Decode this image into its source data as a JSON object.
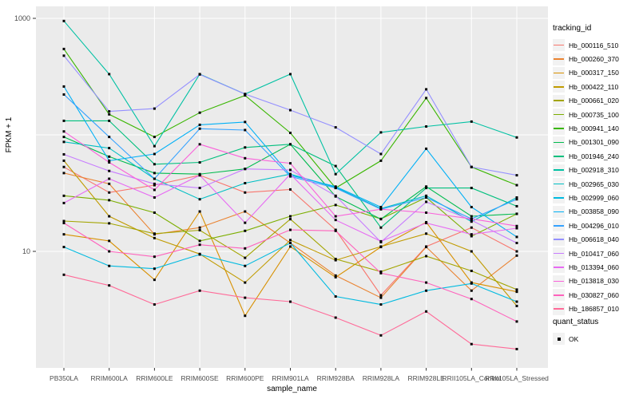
{
  "y_axis": {
    "label": "FPKM + 1",
    "ticks": [
      {
        "label": "1000",
        "value": 1000
      },
      {
        "label": "10",
        "value": 10
      }
    ]
  },
  "x_axis": {
    "label": "sample_name"
  },
  "legend": {
    "tracking_title": "tracking_id",
    "quant_title": "quant_status",
    "quant_items": [
      {
        "label": "OK",
        "marker": "black-square"
      }
    ]
  },
  "style": {
    "panel_bg": "#EBEBEB",
    "grid_color": "#FFFFFF",
    "tick_text_color": "#4d4d4d",
    "axis_title_color": "#000000",
    "point_color": "#000000"
  },
  "chart_data": {
    "type": "line",
    "title": "",
    "xlabel": "sample_name",
    "ylabel": "FPKM + 1",
    "y_scale": "log10",
    "ylim": [
      0.7,
      1300
    ],
    "y_gridlines": [
      10,
      100,
      1000
    ],
    "y_labeled_ticks": [
      1000,
      10
    ],
    "legend_position": "right",
    "point_marker": "filled-square",
    "x_categories": [
      "PB350LA",
      "RRIM600LA",
      "RRIM600LE",
      "RRIM600SE",
      "RRIM600PE",
      "RRIM901LA",
      "RRIM928BA",
      "RRIM928LA",
      "RRIM928LE",
      "RRII105LA_Control",
      "RRII105LA_Stressed"
    ],
    "series": [
      {
        "name": "Hb_000116_510",
        "color": "#F8766D",
        "values": [
          53,
          32,
          37,
          45,
          32,
          34,
          15.3,
          4.2,
          11,
          16,
          10
        ]
      },
      {
        "name": "Hb_000260_370",
        "color": "#EA8331",
        "values": [
          47,
          38,
          14,
          16,
          22,
          11.8,
          6.2,
          4.0,
          10.9,
          4.6,
          9.2
        ]
      },
      {
        "name": "Hb_000317_150",
        "color": "#D89000",
        "values": [
          14,
          12.3,
          5.7,
          22,
          2.8,
          11,
          6.0,
          10.9,
          17.8,
          5.4,
          4.5
        ]
      },
      {
        "name": "Hb_000422_110",
        "color": "#C09B00",
        "values": [
          60,
          20,
          13,
          9.5,
          5.4,
          12.5,
          8.4,
          11,
          14.2,
          10,
          3.4
        ]
      },
      {
        "name": "Hb_000661_020",
        "color": "#A3A500",
        "values": [
          18.2,
          17.4,
          14.2,
          15.2,
          8.8,
          18.9,
          8.6,
          6.7,
          9.1,
          6.8,
          4.7
        ]
      },
      {
        "name": "Hb_000735_100",
        "color": "#7CAE00",
        "values": [
          30,
          27.5,
          21.5,
          12.3,
          15,
          20,
          25,
          19,
          29,
          13.5,
          21
        ]
      },
      {
        "name": "Hb_000941_140",
        "color": "#39B600",
        "values": [
          546,
          150,
          96,
          155,
          218,
          104,
          35,
          60,
          207,
          53,
          37
        ]
      },
      {
        "name": "Hb_001301_090",
        "color": "#00BB4E",
        "values": [
          96,
          65,
          47,
          46,
          51,
          83,
          29.6,
          18.9,
          36,
          20,
          21
        ]
      },
      {
        "name": "Hb_001946_240",
        "color": "#00BF7D",
        "values": [
          132,
          132,
          56,
          58,
          78,
          83,
          54,
          16,
          35,
          35,
          24.4
        ]
      },
      {
        "name": "Hb_002918_310",
        "color": "#00C1A3",
        "values": [
          949,
          332,
          80,
          332,
          224,
          332,
          46,
          105,
          118,
          130,
          95
        ]
      },
      {
        "name": "Hb_002965_030",
        "color": "#00BFC4",
        "values": [
          87,
          77,
          42,
          28,
          38.5,
          46,
          35.4,
          23.3,
          30,
          18,
          29
        ]
      },
      {
        "name": "Hb_002999_060",
        "color": "#00BAE0",
        "values": [
          10.9,
          7.5,
          7.1,
          9.4,
          7.5,
          11.8,
          4.1,
          3.5,
          4.6,
          5.3,
          3.7
        ]
      },
      {
        "name": "Hb_003858_090",
        "color": "#00B0F6",
        "values": [
          260,
          60,
          68.5,
          122,
          129,
          45,
          36,
          24,
          76,
          24,
          13.3
        ]
      },
      {
        "name": "Hb_004296_010",
        "color": "#35A2FF",
        "values": [
          222,
          96,
          42,
          113,
          110,
          44,
          35,
          23,
          29,
          19,
          28
        ]
      },
      {
        "name": "Hb_006618_040",
        "color": "#9590FF",
        "values": [
          478,
          159,
          168,
          330,
          224,
          163,
          116,
          68.5,
          246,
          53,
          45
        ]
      },
      {
        "name": "Hb_010417_060",
        "color": "#C77CFF",
        "values": [
          68,
          49,
          38,
          35,
          51,
          50,
          30,
          12,
          26.6,
          18.5,
          11.8
        ]
      },
      {
        "name": "Hb_013394_060",
        "color": "#E76BF3",
        "values": [
          26,
          42,
          29,
          45,
          17.6,
          46,
          18.6,
          12.2,
          17.5,
          14,
          15.8
        ]
      },
      {
        "name": "Hb_013818_030",
        "color": "#FA62DB",
        "values": [
          107,
          58,
          33.7,
          83,
          63,
          57,
          20,
          23,
          21.5,
          19,
          16.5
        ]
      },
      {
        "name": "Hb_030827_060",
        "color": "#FF62BC",
        "values": [
          17.5,
          10,
          9,
          11.4,
          10.6,
          15.3,
          15,
          6.5,
          5.4,
          3.9,
          2.5
        ]
      },
      {
        "name": "Hb_186857_010",
        "color": "#FF6A98",
        "values": [
          6.3,
          5.1,
          3.5,
          4.6,
          4.0,
          3.7,
          2.7,
          1.9,
          3.05,
          1.6,
          1.45
        ]
      }
    ]
  }
}
